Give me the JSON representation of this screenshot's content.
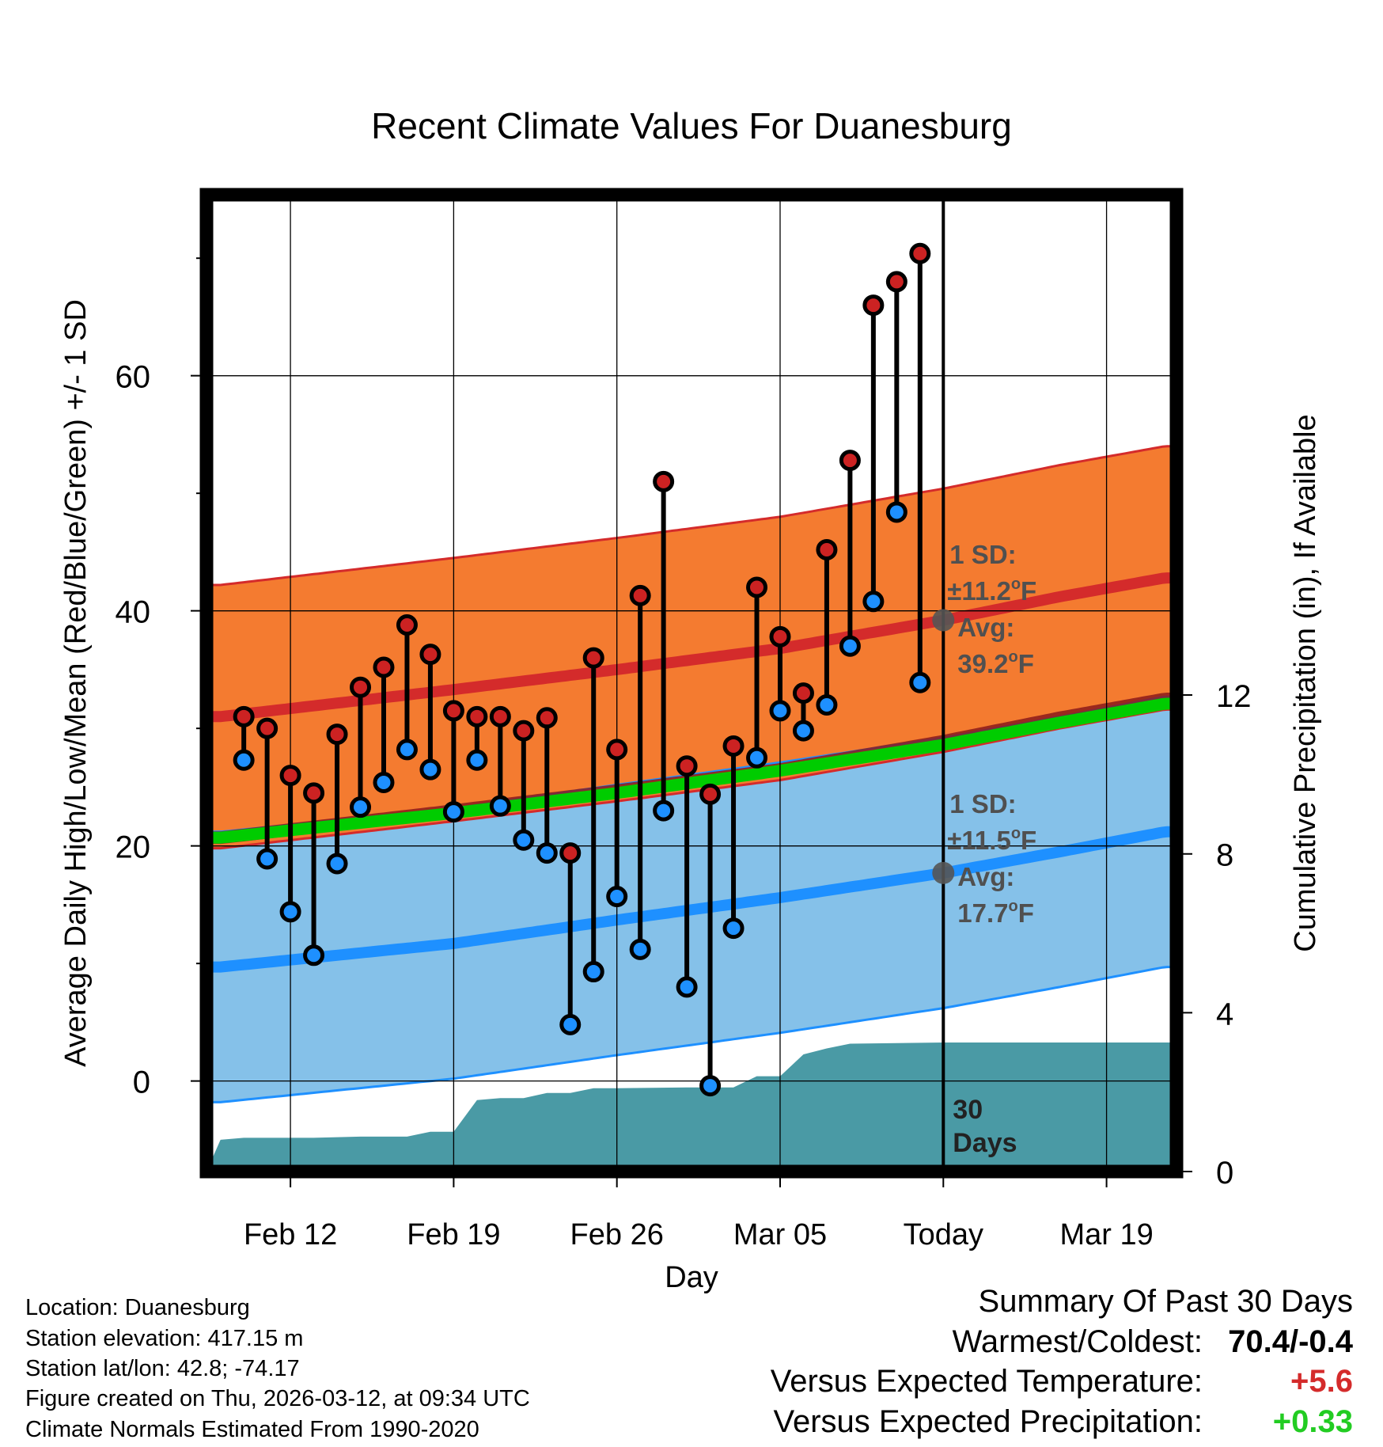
{
  "chart_data": {
    "type": "line",
    "title": "Recent Climate Values For Duanesburg",
    "xlabel": "Day",
    "ylabel": "Average Daily High/Low/Mean (Red/Blue/Green) +/- 1 SD",
    "y2label": "Cumulative Precipitation (in), If Available",
    "x_range_days": [
      -31.6,
      10.0
    ],
    "ylim": [
      -7.7,
      75.4
    ],
    "y2lim": [
      0,
      24.6
    ],
    "y_ticks": [
      0,
      20,
      40,
      60
    ],
    "y_minor_ticks": [
      10,
      30,
      50,
      70
    ],
    "y2_ticks": [
      0,
      4,
      8,
      12
    ],
    "x_ticks": [
      {
        "day": -28,
        "label": "Feb 12"
      },
      {
        "day": -21,
        "label": "Feb 19"
      },
      {
        "day": -14,
        "label": "Feb 26"
      },
      {
        "day": -7,
        "label": "Mar 05"
      },
      {
        "day": 0,
        "label": "Today"
      },
      {
        "day": 7,
        "label": "Mar 19"
      }
    ],
    "today_marker": {
      "day": 0,
      "label_line1": "30",
      "label_line2": "Days"
    },
    "normal_high": {
      "color": "#d42b2b",
      "band_color": "#f47b30",
      "mean": [
        [
          -31,
          31.0
        ],
        [
          -21,
          33.3
        ],
        [
          -14,
          35.0
        ],
        [
          -7,
          36.8
        ],
        [
          0,
          39.2
        ],
        [
          5,
          41.2
        ],
        [
          9.5,
          42.8
        ]
      ],
      "sd": 11.2,
      "annotation": {
        "sd_label": "1 SD:",
        "sd_value": "±11.2",
        "unit": "F",
        "avg_label": "Avg:",
        "avg_value": "39.2",
        "mean_today": 39.2
      }
    },
    "normal_low": {
      "color": "#1e90ff",
      "band_color": "#85c1e9",
      "mean": [
        [
          -31,
          9.7
        ],
        [
          -21,
          11.7
        ],
        [
          -14,
          13.7
        ],
        [
          -7,
          15.6
        ],
        [
          0,
          17.7
        ],
        [
          5,
          19.5
        ],
        [
          9.5,
          21.2
        ]
      ],
      "sd": 11.5,
      "annotation": {
        "sd_label": "1 SD:",
        "sd_value": "±11.5",
        "unit": "F",
        "avg_label": "Avg:",
        "avg_value": "17.7",
        "mean_today": 17.7
      }
    },
    "normal_mean": {
      "color": "#00cc00",
      "mean": [
        [
          -31,
          20.7
        ],
        [
          -21,
          22.8
        ],
        [
          -14,
          24.5
        ],
        [
          -7,
          26.4
        ],
        [
          0,
          28.6
        ],
        [
          5,
          30.5
        ],
        [
          9.5,
          32.1
        ]
      ]
    },
    "daily": {
      "high_color": "#cc2222",
      "low_color": "#1e90ff",
      "days": [
        -30,
        -29,
        -28,
        -27,
        -26,
        -25,
        -24,
        -23,
        -22,
        -21,
        -20,
        -19,
        -18,
        -17,
        -16,
        -15,
        -14,
        -13,
        -12,
        -11,
        -10,
        -9,
        -8,
        -7,
        -6,
        -5,
        -4,
        -3,
        -2,
        -1
      ],
      "highs": [
        31.0,
        30.0,
        26.0,
        24.5,
        29.5,
        33.5,
        35.2,
        38.8,
        36.3,
        31.5,
        31.0,
        31.0,
        29.8,
        30.9,
        19.4,
        36.0,
        28.2,
        41.3,
        51.0,
        26.8,
        24.4,
        28.5,
        42.0,
        37.8,
        33.0,
        45.2,
        52.8,
        66.0,
        68.0,
        70.4
      ],
      "lows": [
        27.3,
        18.9,
        14.4,
        10.7,
        18.5,
        23.3,
        25.4,
        28.2,
        26.5,
        22.9,
        27.3,
        23.4,
        20.5,
        19.4,
        4.8,
        9.3,
        15.7,
        11.2,
        23.0,
        8.0,
        -0.4,
        13.0,
        27.5,
        31.5,
        29.8,
        32.0,
        37.0,
        40.8,
        48.4,
        33.9
      ]
    },
    "precip_cumulative": {
      "color": "#4a9aa5",
      "unit": "in",
      "points": [
        [
          -31.6,
          0.0
        ],
        [
          -31.0,
          0.8
        ],
        [
          -30.0,
          0.85
        ],
        [
          -27.0,
          0.85
        ],
        [
          -25.0,
          0.88
        ],
        [
          -24.0,
          0.88
        ],
        [
          -23.0,
          0.88
        ],
        [
          -22.0,
          1.0
        ],
        [
          -21.0,
          1.0
        ],
        [
          -20.0,
          1.8
        ],
        [
          -19.0,
          1.85
        ],
        [
          -18.0,
          1.85
        ],
        [
          -17.0,
          1.98
        ],
        [
          -16.0,
          1.98
        ],
        [
          -15.0,
          2.1
        ],
        [
          -14.0,
          2.1
        ],
        [
          -11.0,
          2.12
        ],
        [
          -9.0,
          2.12
        ],
        [
          -8.0,
          2.4
        ],
        [
          -7.0,
          2.4
        ],
        [
          -6.0,
          2.95
        ],
        [
          -5.0,
          3.1
        ],
        [
          -4.0,
          3.22
        ],
        [
          0.0,
          3.25
        ],
        [
          10.0,
          3.25
        ]
      ]
    }
  },
  "info": {
    "location": "Location: Duanesburg",
    "elevation": "Station elevation: 417.15 m",
    "latlon": "Station lat/lon: 42.8; -74.17",
    "created": "Figure created on Thu, 2026-03-12, at 09:34 UTC",
    "normals": "Climate Normals Estimated From 1990-2020"
  },
  "summary": {
    "title": "Summary Of Past 30 Days",
    "warmest_label": "Warmest/Coldest:",
    "warmest_value": "70.4/-0.4",
    "temp_label": "Versus Expected Temperature:",
    "temp_value": "+5.6",
    "temp_color": "#d42b2b",
    "precip_label": "Versus Expected Precipitation:",
    "precip_value": "+0.33",
    "precip_color": "#22cc22"
  }
}
